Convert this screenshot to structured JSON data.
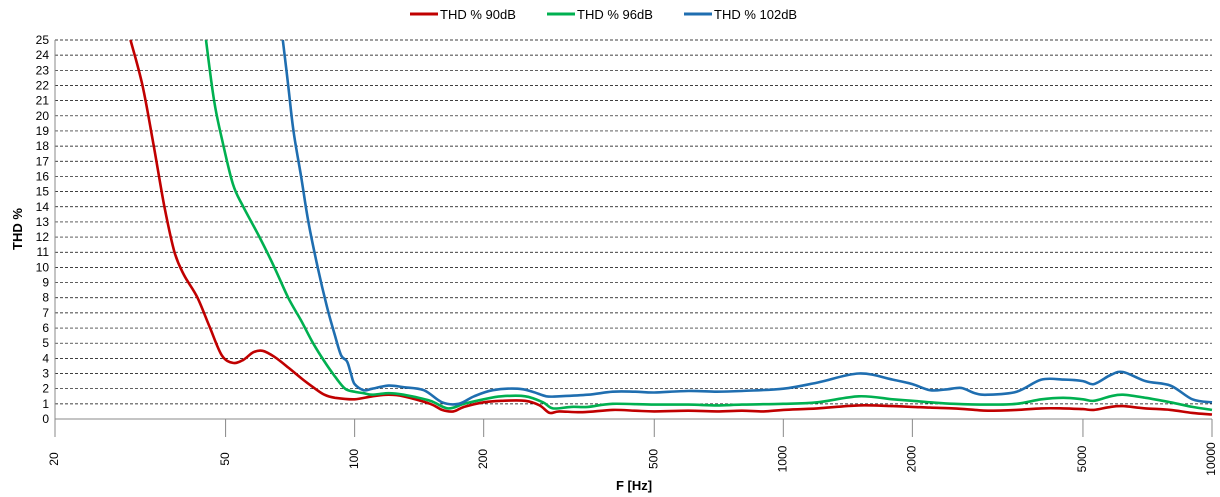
{
  "chart_data": {
    "type": "line",
    "xlabel": "F [Hz]",
    "ylabel": "THD %",
    "x_scale": "log",
    "xlim": [
      20,
      10000
    ],
    "ylim": [
      0,
      25
    ],
    "x_ticks": [
      20,
      50,
      100,
      200,
      500,
      1000,
      2000,
      5000,
      10000
    ],
    "x_tick_labels": [
      "20",
      "50",
      "100",
      "200",
      "500",
      "1000",
      "2000",
      "5000",
      "10000"
    ],
    "y_ticks": [
      0,
      1,
      2,
      3,
      4,
      5,
      6,
      7,
      8,
      9,
      10,
      11,
      12,
      13,
      14,
      15,
      16,
      17,
      18,
      19,
      20,
      21,
      22,
      23,
      24,
      25
    ],
    "y_tick_labels": [
      "0",
      "1",
      "2",
      "3",
      "4",
      "5",
      "6",
      "7",
      "8",
      "9",
      "10",
      "11",
      "12",
      "13",
      "14",
      "15",
      "16",
      "17",
      "18",
      "19",
      "20",
      "21",
      "22",
      "23",
      "24",
      "25"
    ],
    "grid": "horizontal dashed",
    "legend_position": "top",
    "series": [
      {
        "name": "THD % 90dB",
        "color": "#c00000",
        "points": [
          [
            30,
            25
          ],
          [
            32,
            22
          ],
          [
            34,
            18
          ],
          [
            36,
            14
          ],
          [
            38,
            11
          ],
          [
            40,
            9.5
          ],
          [
            43,
            8
          ],
          [
            46,
            6
          ],
          [
            49,
            4.2
          ],
          [
            52,
            3.7
          ],
          [
            55,
            3.9
          ],
          [
            58,
            4.4
          ],
          [
            61,
            4.5
          ],
          [
            65,
            4.1
          ],
          [
            70,
            3.4
          ],
          [
            75,
            2.7
          ],
          [
            80,
            2.1
          ],
          [
            85,
            1.6
          ],
          [
            90,
            1.4
          ],
          [
            100,
            1.3
          ],
          [
            110,
            1.5
          ],
          [
            120,
            1.6
          ],
          [
            130,
            1.5
          ],
          [
            150,
            1
          ],
          [
            160,
            0.6
          ],
          [
            170,
            0.5
          ],
          [
            180,
            0.8
          ],
          [
            200,
            1.1
          ],
          [
            220,
            1.2
          ],
          [
            250,
            1.2
          ],
          [
            270,
            0.9
          ],
          [
            285,
            0.4
          ],
          [
            300,
            0.5
          ],
          [
            340,
            0.45
          ],
          [
            400,
            0.6
          ],
          [
            450,
            0.55
          ],
          [
            500,
            0.5
          ],
          [
            600,
            0.55
          ],
          [
            700,
            0.5
          ],
          [
            800,
            0.55
          ],
          [
            900,
            0.5
          ],
          [
            1000,
            0.6
          ],
          [
            1200,
            0.7
          ],
          [
            1500,
            0.9
          ],
          [
            1800,
            0.85
          ],
          [
            2000,
            0.8
          ],
          [
            2200,
            0.75
          ],
          [
            2500,
            0.7
          ],
          [
            2800,
            0.6
          ],
          [
            3000,
            0.55
          ],
          [
            3500,
            0.6
          ],
          [
            4000,
            0.7
          ],
          [
            4500,
            0.7
          ],
          [
            5000,
            0.65
          ],
          [
            5300,
            0.6
          ],
          [
            5800,
            0.8
          ],
          [
            6200,
            0.85
          ],
          [
            7000,
            0.7
          ],
          [
            8000,
            0.6
          ],
          [
            9000,
            0.4
          ],
          [
            10000,
            0.3
          ]
        ]
      },
      {
        "name": "THD % 96dB",
        "color": "#00b050",
        "points": [
          [
            45,
            25
          ],
          [
            47,
            21
          ],
          [
            49,
            18.5
          ],
          [
            52,
            15.5
          ],
          [
            55,
            14
          ],
          [
            60,
            12
          ],
          [
            65,
            10
          ],
          [
            70,
            8
          ],
          [
            75,
            6.5
          ],
          [
            80,
            5
          ],
          [
            85,
            3.8
          ],
          [
            90,
            2.8
          ],
          [
            95,
            2
          ],
          [
            100,
            1.8
          ],
          [
            105,
            1.7
          ],
          [
            110,
            1.6
          ],
          [
            120,
            1.7
          ],
          [
            130,
            1.6
          ],
          [
            150,
            1.2
          ],
          [
            165,
            0.7
          ],
          [
            180,
            1
          ],
          [
            200,
            1.3
          ],
          [
            220,
            1.5
          ],
          [
            250,
            1.5
          ],
          [
            275,
            1.1
          ],
          [
            290,
            0.7
          ],
          [
            320,
            0.8
          ],
          [
            350,
            0.8
          ],
          [
            400,
            1
          ],
          [
            500,
            0.95
          ],
          [
            600,
            0.95
          ],
          [
            700,
            0.9
          ],
          [
            800,
            0.95
          ],
          [
            1000,
            1
          ],
          [
            1200,
            1.1
          ],
          [
            1500,
            1.5
          ],
          [
            1800,
            1.3
          ],
          [
            2000,
            1.2
          ],
          [
            2200,
            1.1
          ],
          [
            2500,
            1
          ],
          [
            3000,
            0.95
          ],
          [
            3500,
            1
          ],
          [
            4000,
            1.3
          ],
          [
            4500,
            1.4
          ],
          [
            5000,
            1.3
          ],
          [
            5300,
            1.2
          ],
          [
            5800,
            1.5
          ],
          [
            6200,
            1.6
          ],
          [
            7000,
            1.4
          ],
          [
            8000,
            1.1
          ],
          [
            9000,
            0.8
          ],
          [
            10000,
            0.6
          ]
        ]
      },
      {
        "name": "THD % 102dB",
        "color": "#1f6eb0",
        "points": [
          [
            68,
            25
          ],
          [
            70,
            22
          ],
          [
            72,
            19
          ],
          [
            75,
            16
          ],
          [
            78,
            13
          ],
          [
            82,
            10
          ],
          [
            86,
            7.5
          ],
          [
            90,
            5.5
          ],
          [
            93,
            4.2
          ],
          [
            96,
            3.8
          ],
          [
            98,
            3
          ],
          [
            100,
            2.3
          ],
          [
            105,
            1.9
          ],
          [
            110,
            2
          ],
          [
            120,
            2.2
          ],
          [
            130,
            2.1
          ],
          [
            145,
            1.9
          ],
          [
            160,
            1.1
          ],
          [
            175,
            1
          ],
          [
            190,
            1.5
          ],
          [
            210,
            1.9
          ],
          [
            240,
            2
          ],
          [
            260,
            1.8
          ],
          [
            280,
            1.5
          ],
          [
            300,
            1.5
          ],
          [
            350,
            1.6
          ],
          [
            400,
            1.8
          ],
          [
            450,
            1.8
          ],
          [
            500,
            1.75
          ],
          [
            600,
            1.85
          ],
          [
            700,
            1.8
          ],
          [
            800,
            1.85
          ],
          [
            1000,
            2
          ],
          [
            1200,
            2.4
          ],
          [
            1500,
            3
          ],
          [
            1800,
            2.6
          ],
          [
            2000,
            2.3
          ],
          [
            2200,
            1.9
          ],
          [
            2400,
            1.95
          ],
          [
            2600,
            2.05
          ],
          [
            2800,
            1.7
          ],
          [
            3000,
            1.6
          ],
          [
            3500,
            1.8
          ],
          [
            4000,
            2.6
          ],
          [
            4500,
            2.6
          ],
          [
            5000,
            2.5
          ],
          [
            5300,
            2.3
          ],
          [
            5800,
            2.9
          ],
          [
            6200,
            3.1
          ],
          [
            7000,
            2.5
          ],
          [
            8000,
            2.2
          ],
          [
            9000,
            1.3
          ],
          [
            10000,
            1.1
          ]
        ]
      }
    ]
  }
}
